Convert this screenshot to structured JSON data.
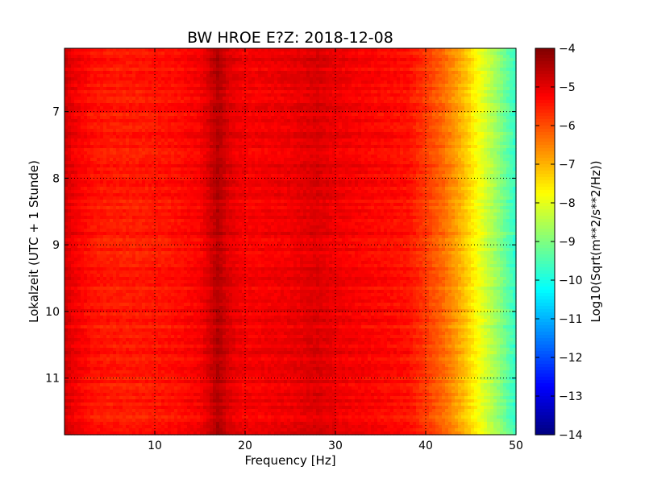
{
  "chart_data": {
    "type": "heatmap",
    "title": "BW HROE E?Z: 2018-12-08",
    "xlabel": "Frequency [Hz]",
    "ylabel": "Lokalzeit (UTC + 1 Stunde)",
    "xlim": [
      0,
      50
    ],
    "ylim": [
      11.85,
      6.05
    ],
    "x_inverted": false,
    "y_inverted": true,
    "x_ticks": [
      10,
      20,
      30,
      40,
      50
    ],
    "x_tick_labels": [
      "10",
      "20",
      "30",
      "40",
      "50"
    ],
    "y_ticks": [
      7,
      8,
      9,
      10,
      11
    ],
    "y_tick_labels": [
      "7",
      "8",
      "9",
      "10",
      "11"
    ],
    "grid": true,
    "colormap": "jet",
    "colorbar": {
      "label": "Log10(Sqrt(m**2/s**2/Hz))",
      "range": [
        -14,
        -4
      ],
      "ticks": [
        -4,
        -5,
        -6,
        -7,
        -8,
        -9,
        -10,
        -11,
        -12,
        -13,
        -14
      ],
      "tick_labels": [
        "−4",
        "−5",
        "−6",
        "−7",
        "−8",
        "−9",
        "−10",
        "−11",
        "−12",
        "−13",
        "−14"
      ]
    },
    "spectrum_profile": {
      "frequency_hz": [
        0,
        1,
        3,
        5,
        8,
        10,
        12,
        15,
        16,
        17,
        18,
        20,
        25,
        28,
        30,
        35,
        38,
        40,
        42,
        44,
        46,
        48,
        50
      ],
      "log10_amplitude": [
        -4.8,
        -5.1,
        -5.4,
        -5.5,
        -5.5,
        -5.45,
        -5.4,
        -5.2,
        -4.9,
        -4.5,
        -4.9,
        -5.2,
        -5.1,
        -4.9,
        -5.1,
        -5.3,
        -5.4,
        -5.8,
        -6.3,
        -7.0,
        -7.9,
        -8.8,
        -9.8
      ]
    }
  }
}
